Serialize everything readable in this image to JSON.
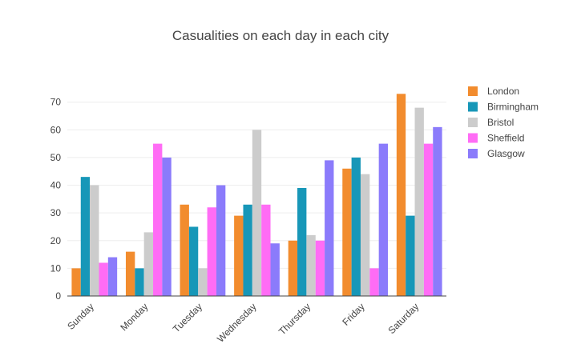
{
  "chart_data": {
    "type": "bar",
    "title": "Casualities on each day in each city",
    "xlabel": "",
    "ylabel": "",
    "categories": [
      "Sunday",
      "Monday",
      "Tuesday",
      "Wednesday",
      "Thursday",
      "Friday",
      "Saturday"
    ],
    "ylim": [
      0,
      78
    ],
    "yticks": [
      0,
      10,
      20,
      30,
      40,
      50,
      60,
      70
    ],
    "grid": true,
    "legend_position": "top-right",
    "series": [
      {
        "name": "London",
        "color": "#f28c2e",
        "values": [
          10,
          16,
          33,
          29,
          20,
          46,
          73
        ]
      },
      {
        "name": "Birmingham",
        "color": "#1797b8",
        "values": [
          43,
          10,
          25,
          33,
          39,
          50,
          29
        ]
      },
      {
        "name": "Bristol",
        "color": "#cccccc",
        "values": [
          40,
          23,
          10,
          60,
          22,
          44,
          68
        ]
      },
      {
        "name": "Sheffield",
        "color": "#ff6cf5",
        "values": [
          12,
          55,
          32,
          33,
          20,
          10,
          55
        ]
      },
      {
        "name": "Glasgow",
        "color": "#8b7bfb",
        "values": [
          14,
          50,
          40,
          19,
          49,
          55,
          61
        ]
      }
    ]
  }
}
